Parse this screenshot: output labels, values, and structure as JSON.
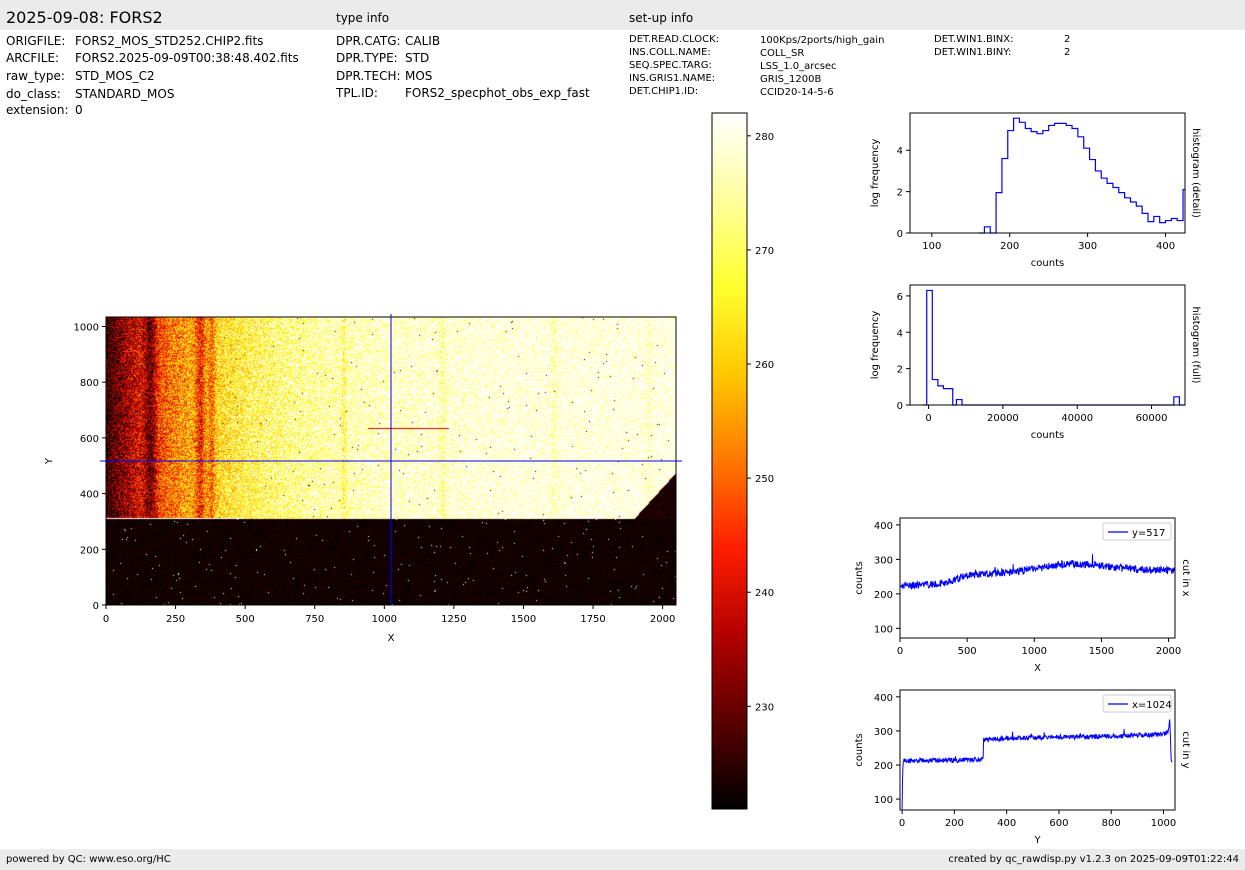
{
  "header": {
    "title": "2025-09-08: FORS2",
    "type_info_heading": "type info",
    "setup_info_heading": "set-up info"
  },
  "file_info": [
    {
      "key": "ORIGFILE:",
      "value": "FORS2_MOS_STD252.CHIP2.fits"
    },
    {
      "key": "ARCFILE:",
      "value": "FORS2.2025-09-09T00:38:48.402.fits"
    },
    {
      "key": "raw_type:",
      "value": "STD_MOS_C2"
    },
    {
      "key": "do_class:",
      "value": "STANDARD_MOS"
    },
    {
      "key": "extension:",
      "value": "0"
    }
  ],
  "type_info": [
    {
      "key": "DPR.CATG:",
      "value": "CALIB"
    },
    {
      "key": "DPR.TYPE:",
      "value": "STD"
    },
    {
      "key": "DPR.TECH:",
      "value": "MOS"
    },
    {
      "key": "TPL.ID:",
      "value": "FORS2_specphot_obs_exp_fast"
    }
  ],
  "setup_info": [
    {
      "key": "DET.READ.CLOCK:",
      "value": "100Kps/2ports/high_gain"
    },
    {
      "key": "INS.COLL.NAME:",
      "value": "COLL_SR"
    },
    {
      "key": "SEQ.SPEC.TARG:",
      "value": "LSS_1.0_arcsec"
    },
    {
      "key": "INS.GRIS1.NAME:",
      "value": "GRIS_1200B"
    },
    {
      "key": "DET.CHIP1.ID:",
      "value": "CCID20-14-5-6"
    }
  ],
  "setup_info2": [
    {
      "key": "DET.WIN1.BINX:",
      "value": "2"
    },
    {
      "key": "DET.WIN1.BINY:",
      "value": "2"
    }
  ],
  "footer": {
    "left": "powered by QC: www.eso.org/HC",
    "right": "created by qc_rawdisp.py v1.2.3 on 2025-09-09T01:22:44"
  },
  "colors": {
    "series": "#0000ff",
    "panel_bg": "#ebebeb",
    "colormap": [
      "#000000",
      "#5a0000",
      "#b40000",
      "#ff1e00",
      "#ff7800",
      "#ffc800",
      "#ffff2e",
      "#ffff9e",
      "#ffffff"
    ]
  },
  "chart_data": [
    {
      "type": "heatmap",
      "name": "image",
      "xlabel": "X",
      "ylabel": "Y",
      "xlim": [
        0,
        2048
      ],
      "ylim": [
        0,
        1034
      ],
      "xticks": [
        "0",
        "250",
        "500",
        "750",
        "1000",
        "1250",
        "1500",
        "1750",
        "2000"
      ],
      "yticks": [
        "0",
        "200",
        "400",
        "600",
        "800",
        "1000"
      ],
      "crosshair": {
        "x": 1024,
        "y": 517
      },
      "colorbar": {
        "min": 221,
        "max": 282,
        "ticks": [
          "230",
          "240",
          "250",
          "260",
          "270",
          "280"
        ]
      }
    },
    {
      "type": "line",
      "name": "histogram (detail)",
      "xlabel": "counts",
      "ylabel": "log frequency",
      "side_label": "histogram (detail)",
      "xlim": [
        72,
        425
      ],
      "ylim": [
        0,
        5.8
      ],
      "xticks": [
        "100",
        "200",
        "300",
        "400"
      ],
      "yticks": [
        "0",
        "2",
        "4"
      ],
      "x_start": 160,
      "x_step": 7.5,
      "values": [
        0,
        0.3,
        0,
        1.95,
        3.6,
        4.95,
        5.55,
        5.35,
        5.05,
        4.9,
        4.8,
        4.95,
        5.2,
        5.3,
        5.3,
        5.2,
        5.05,
        4.65,
        4.1,
        3.55,
        3.0,
        2.65,
        2.4,
        2.2,
        1.95,
        1.7,
        1.5,
        1.3,
        0.95,
        0.55,
        0.8,
        0.5,
        0.6,
        0.7,
        0.6,
        2.1
      ]
    },
    {
      "type": "line",
      "name": "histogram (full)",
      "xlabel": "counts",
      "ylabel": "log frequency",
      "side_label": "histogram (full)",
      "xlim": [
        -5000,
        69000
      ],
      "ylim": [
        0,
        6.6
      ],
      "xticks": [
        "0",
        "20000",
        "40000",
        "60000"
      ],
      "yticks": [
        "0",
        "2",
        "4",
        "6"
      ],
      "steps": [
        [
          -1500,
          0
        ],
        [
          -500,
          6.3
        ],
        [
          -100,
          6.3
        ],
        [
          1000,
          1.4
        ],
        [
          2500,
          1.05
        ],
        [
          4000,
          0.9
        ],
        [
          6500,
          0
        ],
        [
          7500,
          0.3
        ],
        [
          9000,
          0
        ],
        [
          65500,
          0
        ],
        [
          66000,
          0.45
        ],
        [
          67500,
          0
        ],
        [
          69000,
          0
        ]
      ]
    },
    {
      "type": "line",
      "name": "cut in x",
      "xlabel": "X",
      "ylabel": "counts",
      "side_label": "cut in x",
      "legend": "y=517",
      "xlim": [
        0,
        2048
      ],
      "ylim": [
        72,
        420
      ],
      "xticks": [
        "0",
        "500",
        "1000",
        "1500",
        "2000"
      ],
      "yticks": [
        "100",
        "200",
        "300",
        "400"
      ],
      "x": [
        0,
        150,
        250,
        350,
        450,
        550,
        700,
        850,
        950,
        1050,
        1150,
        1250,
        1350,
        1450,
        1550,
        1650,
        1750,
        1850,
        1950,
        2048
      ],
      "y": [
        222,
        225,
        230,
        232,
        248,
        256,
        260,
        263,
        270,
        276,
        282,
        288,
        283,
        286,
        280,
        275,
        272,
        270,
        268,
        268
      ],
      "noise": 11
    },
    {
      "type": "line",
      "name": "cut in y",
      "xlabel": "Y",
      "ylabel": "counts",
      "side_label": "cut in y",
      "legend": "x=1024",
      "xlim": [
        -8,
        1044
      ],
      "ylim": [
        68,
        420
      ],
      "xticks": [
        "0",
        "200",
        "400",
        "600",
        "800",
        "1000"
      ],
      "yticks": [
        "100",
        "200",
        "300",
        "400"
      ],
      "x": [
        0,
        2,
        5,
        100,
        200,
        300,
        310,
        311,
        320,
        400,
        500,
        600,
        700,
        800,
        900,
        1000,
        1020,
        1024,
        1030,
        1034
      ],
      "y": [
        70,
        180,
        212,
        213,
        214,
        216,
        215,
        273,
        275,
        278,
        280,
        283,
        282,
        285,
        287,
        290,
        300,
        335,
        210,
        210
      ],
      "noise": 7
    }
  ]
}
